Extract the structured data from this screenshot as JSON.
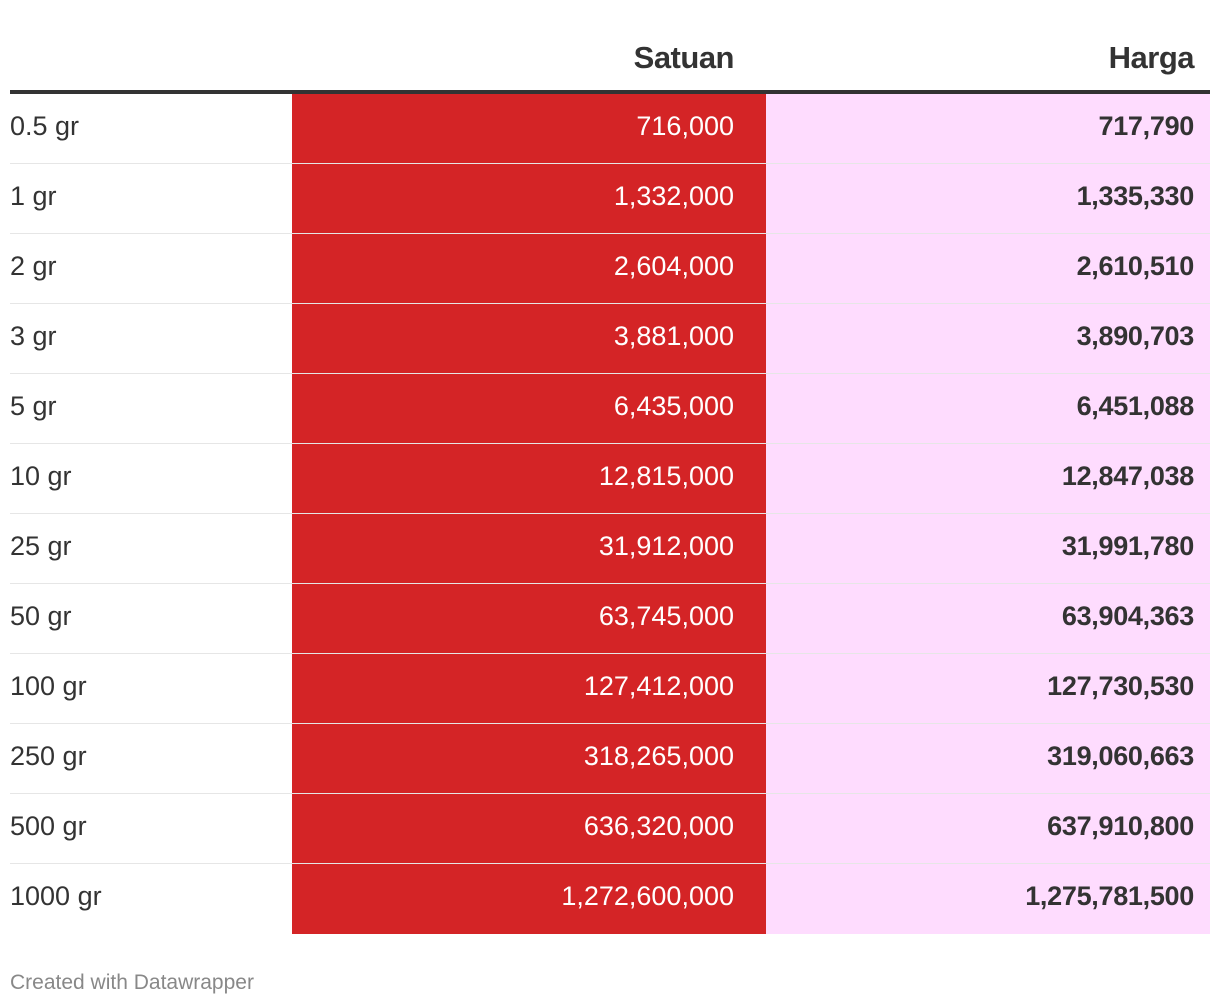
{
  "colors": {
    "satuan_fill": "#d42426",
    "harga_fill": "#fedcfe",
    "header_rule": "#333333",
    "text": "#333333"
  },
  "chart_data": {
    "type": "table",
    "columns": [
      "",
      "Satuan",
      "Harga"
    ],
    "rows": [
      {
        "label": "0.5 gr",
        "satuan": "716,000",
        "harga": "717,790"
      },
      {
        "label": "1 gr",
        "satuan": "1,332,000",
        "harga": "1,335,330"
      },
      {
        "label": "2 gr",
        "satuan": "2,604,000",
        "harga": "2,610,510"
      },
      {
        "label": "3 gr",
        "satuan": "3,881,000",
        "harga": "3,890,703"
      },
      {
        "label": "5 gr",
        "satuan": "6,435,000",
        "harga": "6,451,088"
      },
      {
        "label": "10 gr",
        "satuan": "12,815,000",
        "harga": "12,847,038"
      },
      {
        "label": "25 gr",
        "satuan": "31,912,000",
        "harga": "31,991,780"
      },
      {
        "label": "50 gr",
        "satuan": "63,745,000",
        "harga": "63,904,363"
      },
      {
        "label": "100 gr",
        "satuan": "127,412,000",
        "harga": "127,730,530"
      },
      {
        "label": "250 gr",
        "satuan": "318,265,000",
        "harga": "319,060,663"
      },
      {
        "label": "500 gr",
        "satuan": "636,320,000",
        "harga": "637,910,800"
      },
      {
        "label": "1000 gr",
        "satuan": "1,272,600,000",
        "harga": "1,275,781,500"
      }
    ]
  },
  "footer": {
    "credit": "Created with Datawrapper"
  }
}
